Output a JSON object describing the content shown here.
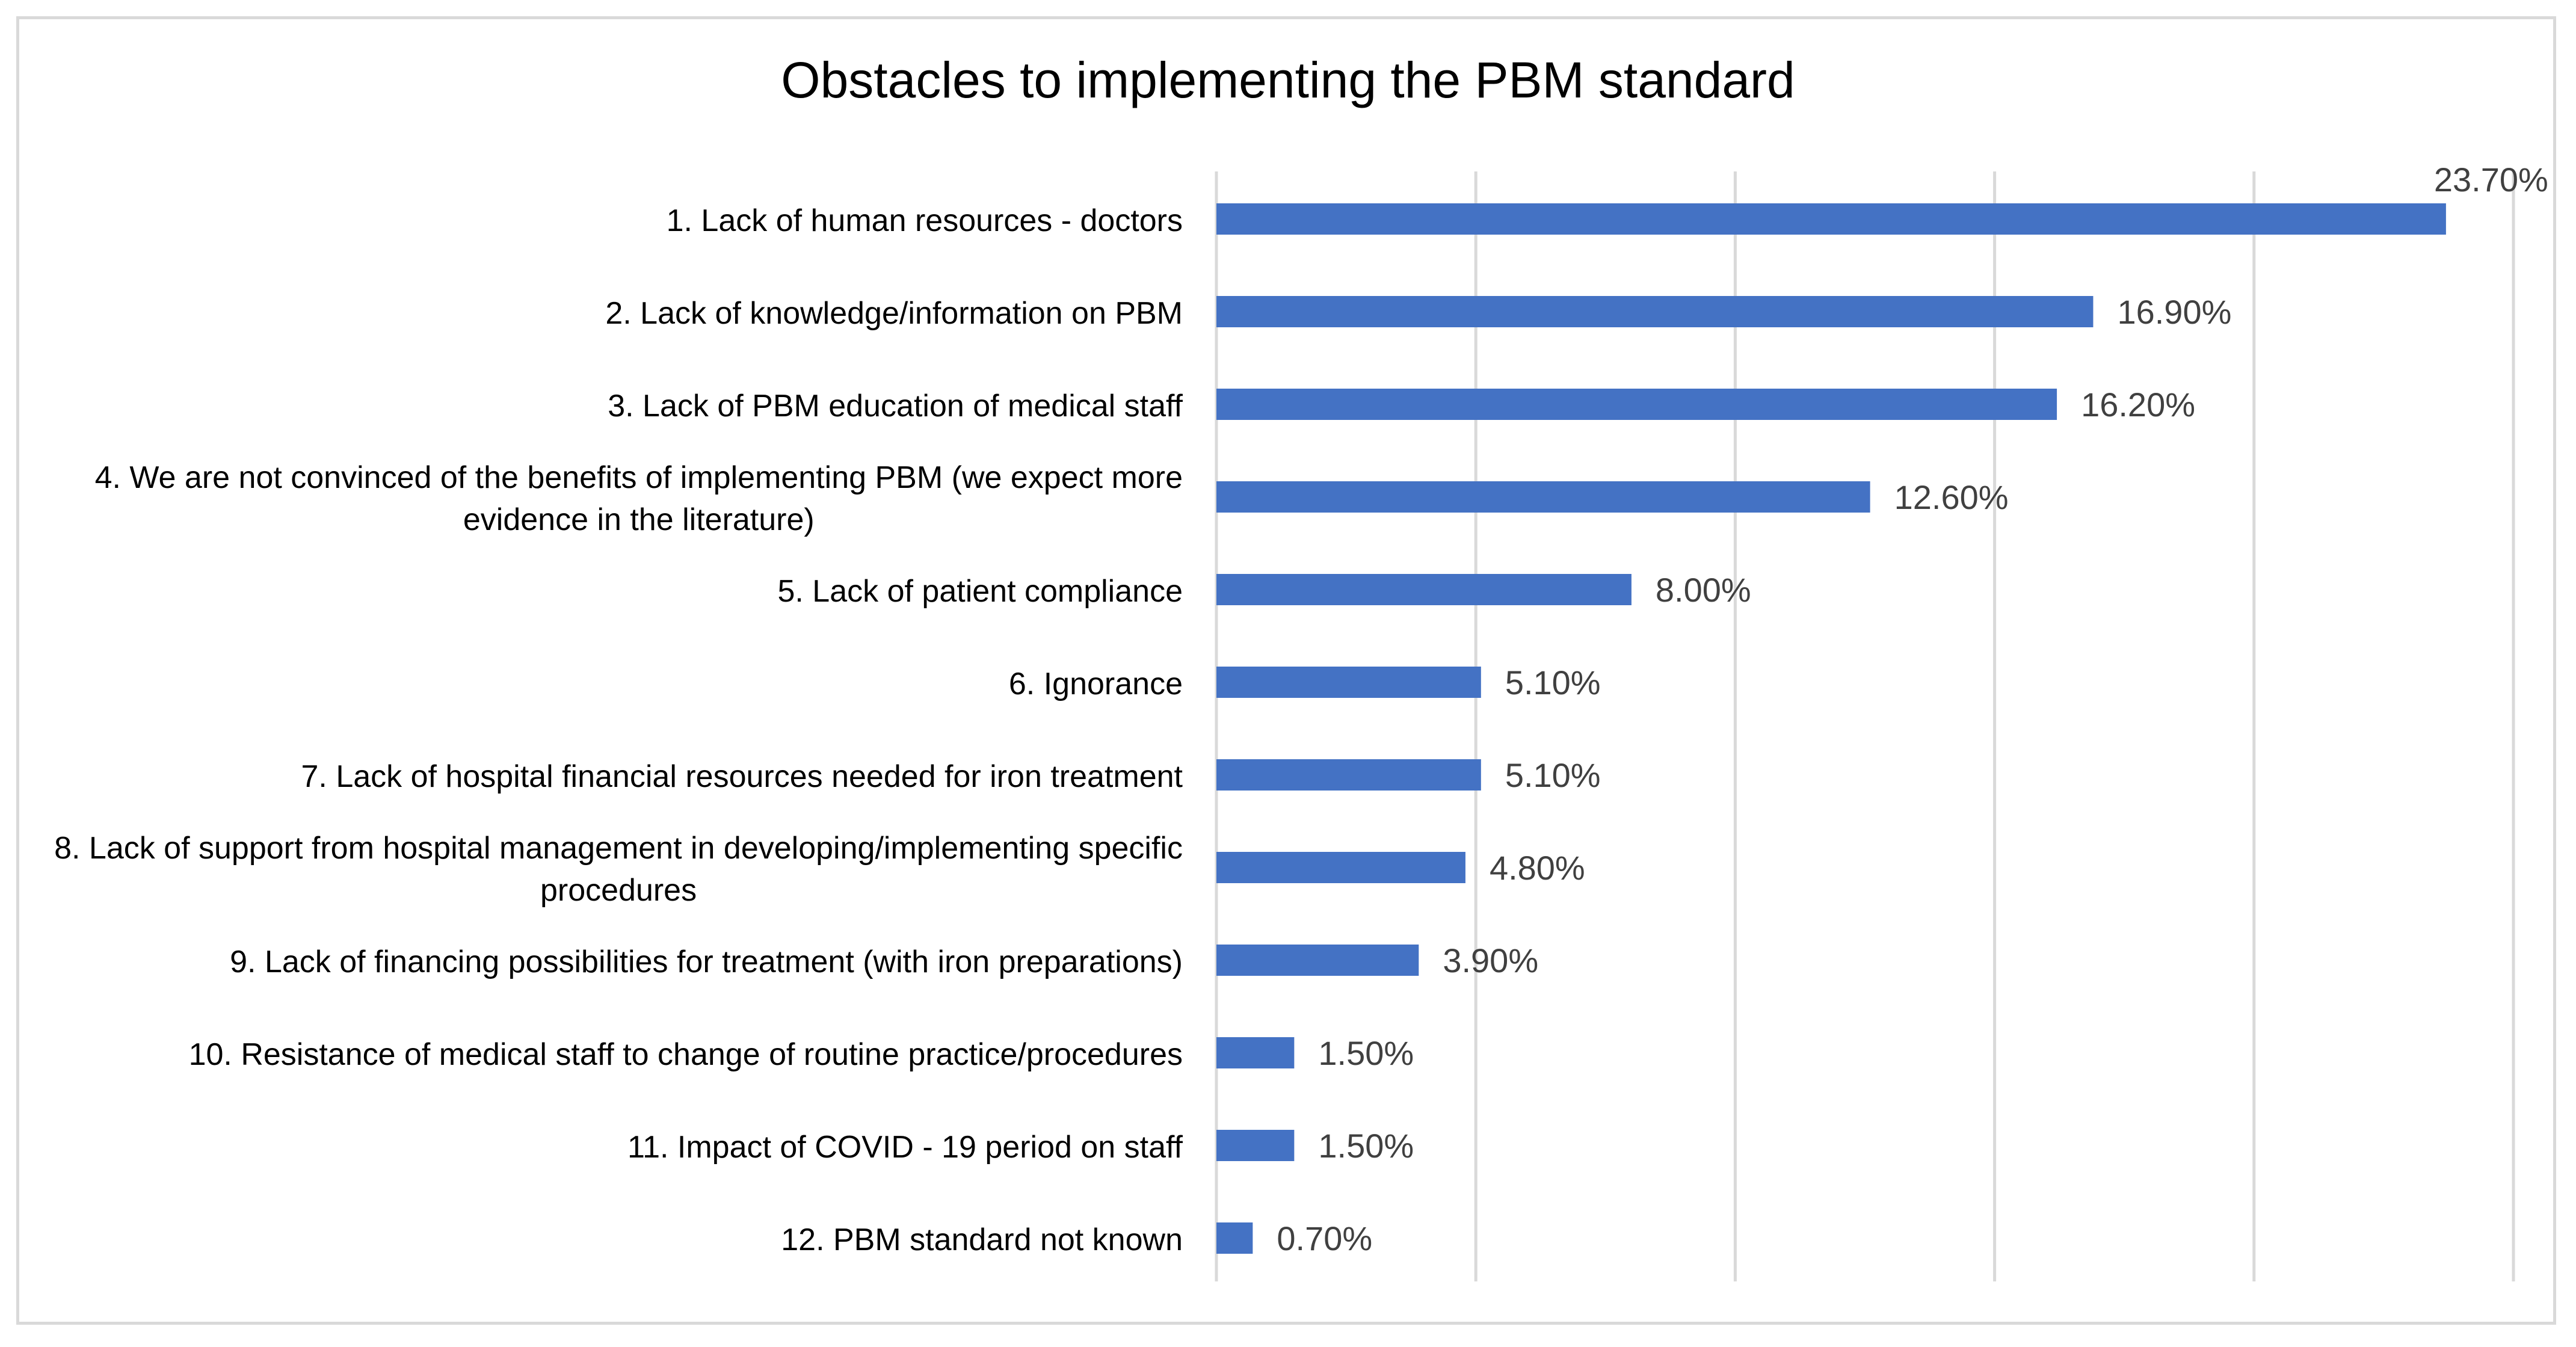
{
  "chart_data": {
    "type": "bar",
    "orientation": "horizontal",
    "title": "Obstacles to implementing the PBM standard",
    "xlabel": "",
    "ylabel": "",
    "xlim": [
      0,
      25
    ],
    "grid": "vertical",
    "legend": "none",
    "bar_color": "#4472c4",
    "grid_color": "#d9d9d9",
    "text_color": "#000000",
    "label_color": "#404040",
    "categories": [
      [
        "1. Lack of human resources - doctors"
      ],
      [
        "2. Lack of knowledge/information on PBM"
      ],
      [
        "3. Lack of PBM education of medical staff"
      ],
      [
        "4. We are not convinced of the benefits of implementing PBM (we expect more",
        "evidence in the literature)"
      ],
      [
        "5. Lack of patient compliance"
      ],
      [
        "6. Ignorance"
      ],
      [
        "7. Lack of hospital financial resources needed for iron treatment"
      ],
      [
        "8. Lack of support from hospital management in developing/implementing specific",
        "procedures"
      ],
      [
        "9. Lack of financing possibilities for treatment (with iron preparations)"
      ],
      [
        "10. Resistance of medical staff to change of routine practice/procedures"
      ],
      [
        "11. Impact of COVID - 19 period on staff"
      ],
      [
        "12. PBM standard not known"
      ]
    ],
    "values": [
      23.7,
      16.9,
      16.2,
      12.6,
      8.0,
      5.1,
      5.1,
      4.8,
      3.9,
      1.5,
      1.5,
      0.7
    ],
    "data_labels": [
      "23.70%",
      "16.90%",
      "16.20%",
      "12.60%",
      "8.00%",
      "5.10%",
      "5.10%",
      "4.80%",
      "3.90%",
      "1.50%",
      "1.50%",
      "0.70%"
    ]
  }
}
